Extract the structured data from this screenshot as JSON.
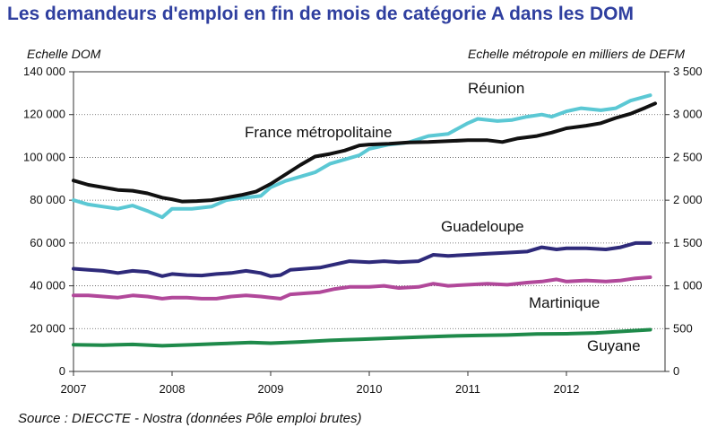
{
  "title": "Les demandeurs d'emploi en fin de mois de catégorie A dans les DOM",
  "source": "Source : DIECCTE - Nostra (données Pôle emploi brutes)",
  "chart_data": {
    "type": "line",
    "title": "Les demandeurs d'emploi en fin de mois de catégorie A dans les DOM",
    "ylabel_left": "Echelle DOM",
    "ylabel_right": "Echelle métropole en milliers de DEFM",
    "ylim_left": [
      0,
      140000
    ],
    "ylim_right": [
      0,
      3500
    ],
    "xlim": [
      2007,
      2013
    ],
    "yticks_left": [
      "0",
      "20 000",
      "40 000",
      "60 000",
      "80 000",
      "100 000",
      "120 000",
      "140 000"
    ],
    "yticks_right": [
      "0",
      "500",
      "1 000",
      "1 500",
      "2 000",
      "2 500",
      "3 000",
      "3 500"
    ],
    "xticks": [
      "2007",
      "2008",
      "2009",
      "2010",
      "2011",
      "2012"
    ],
    "grid": "horizontal",
    "series": [
      {
        "name": "Réunion",
        "axis": "left",
        "color": "#5bc8d4",
        "points": [
          [
            2007.0,
            80000
          ],
          [
            2007.15,
            78000
          ],
          [
            2007.3,
            77000
          ],
          [
            2007.45,
            76000
          ],
          [
            2007.6,
            77500
          ],
          [
            2007.75,
            75000
          ],
          [
            2007.9,
            72000
          ],
          [
            2008.0,
            76000
          ],
          [
            2008.2,
            76000
          ],
          [
            2008.4,
            77000
          ],
          [
            2008.55,
            80000
          ],
          [
            2008.7,
            81000
          ],
          [
            2008.9,
            82000
          ],
          [
            2009.0,
            86000
          ],
          [
            2009.15,
            89000
          ],
          [
            2009.3,
            91000
          ],
          [
            2009.45,
            93000
          ],
          [
            2009.6,
            97000
          ],
          [
            2009.75,
            99000
          ],
          [
            2009.9,
            101000
          ],
          [
            2010.0,
            104000
          ],
          [
            2010.2,
            106000
          ],
          [
            2010.4,
            107000
          ],
          [
            2010.6,
            110000
          ],
          [
            2010.8,
            111000
          ],
          [
            2011.0,
            116000
          ],
          [
            2011.1,
            118000
          ],
          [
            2011.3,
            117000
          ],
          [
            2011.45,
            117500
          ],
          [
            2011.6,
            119000
          ],
          [
            2011.75,
            120000
          ],
          [
            2011.85,
            119000
          ],
          [
            2012.0,
            121500
          ],
          [
            2012.15,
            123000
          ],
          [
            2012.35,
            122000
          ],
          [
            2012.5,
            123000
          ],
          [
            2012.65,
            126500
          ],
          [
            2012.85,
            129000
          ]
        ]
      },
      {
        "name": "France métropolitaine",
        "axis": "right",
        "color": "#111111",
        "points": [
          [
            2007.0,
            2230
          ],
          [
            2007.15,
            2180
          ],
          [
            2007.3,
            2150
          ],
          [
            2007.45,
            2120
          ],
          [
            2007.6,
            2110
          ],
          [
            2007.75,
            2080
          ],
          [
            2007.9,
            2030
          ],
          [
            2008.0,
            2010
          ],
          [
            2008.1,
            1985
          ],
          [
            2008.25,
            1990
          ],
          [
            2008.4,
            2000
          ],
          [
            2008.55,
            2030
          ],
          [
            2008.7,
            2060
          ],
          [
            2008.85,
            2100
          ],
          [
            2009.0,
            2190
          ],
          [
            2009.15,
            2300
          ],
          [
            2009.3,
            2410
          ],
          [
            2009.45,
            2510
          ],
          [
            2009.6,
            2540
          ],
          [
            2009.75,
            2580
          ],
          [
            2009.9,
            2640
          ],
          [
            2010.0,
            2650
          ],
          [
            2010.2,
            2660
          ],
          [
            2010.4,
            2675
          ],
          [
            2010.6,
            2680
          ],
          [
            2010.8,
            2690
          ],
          [
            2011.0,
            2700
          ],
          [
            2011.2,
            2700
          ],
          [
            2011.35,
            2680
          ],
          [
            2011.5,
            2720
          ],
          [
            2011.7,
            2750
          ],
          [
            2011.85,
            2790
          ],
          [
            2012.0,
            2840
          ],
          [
            2012.2,
            2870
          ],
          [
            2012.35,
            2900
          ],
          [
            2012.5,
            2960
          ],
          [
            2012.65,
            3010
          ],
          [
            2012.8,
            3080
          ],
          [
            2012.9,
            3130
          ]
        ]
      },
      {
        "name": "Guadeloupe",
        "axis": "left",
        "color": "#2e2a7a",
        "points": [
          [
            2007.0,
            48000
          ],
          [
            2007.15,
            47500
          ],
          [
            2007.3,
            47000
          ],
          [
            2007.45,
            46000
          ],
          [
            2007.6,
            47000
          ],
          [
            2007.75,
            46500
          ],
          [
            2007.9,
            44500
          ],
          [
            2008.0,
            45500
          ],
          [
            2008.15,
            45000
          ],
          [
            2008.3,
            44800
          ],
          [
            2008.45,
            45500
          ],
          [
            2008.6,
            46000
          ],
          [
            2008.75,
            47000
          ],
          [
            2008.9,
            46000
          ],
          [
            2009.0,
            44500
          ],
          [
            2009.1,
            45000
          ],
          [
            2009.2,
            47500
          ],
          [
            2009.35,
            48000
          ],
          [
            2009.5,
            48500
          ],
          [
            2009.65,
            50000
          ],
          [
            2009.8,
            51500
          ],
          [
            2010.0,
            51000
          ],
          [
            2010.15,
            51500
          ],
          [
            2010.3,
            51000
          ],
          [
            2010.5,
            51500
          ],
          [
            2010.65,
            54500
          ],
          [
            2010.8,
            54000
          ],
          [
            2011.0,
            54500
          ],
          [
            2011.2,
            55000
          ],
          [
            2011.4,
            55500
          ],
          [
            2011.6,
            56000
          ],
          [
            2011.75,
            58000
          ],
          [
            2011.9,
            57000
          ],
          [
            2012.0,
            57500
          ],
          [
            2012.2,
            57500
          ],
          [
            2012.4,
            57000
          ],
          [
            2012.55,
            58000
          ],
          [
            2012.7,
            60000
          ],
          [
            2012.85,
            60000
          ]
        ]
      },
      {
        "name": "Martinique",
        "axis": "left",
        "color": "#b1489a",
        "points": [
          [
            2007.0,
            35500
          ],
          [
            2007.15,
            35500
          ],
          [
            2007.3,
            35000
          ],
          [
            2007.45,
            34500
          ],
          [
            2007.6,
            35500
          ],
          [
            2007.75,
            35000
          ],
          [
            2007.9,
            34000
          ],
          [
            2008.0,
            34500
          ],
          [
            2008.15,
            34500
          ],
          [
            2008.3,
            34000
          ],
          [
            2008.45,
            34000
          ],
          [
            2008.6,
            35000
          ],
          [
            2008.75,
            35500
          ],
          [
            2008.9,
            35000
          ],
          [
            2009.0,
            34500
          ],
          [
            2009.1,
            34000
          ],
          [
            2009.2,
            36000
          ],
          [
            2009.35,
            36500
          ],
          [
            2009.5,
            37000
          ],
          [
            2009.65,
            38500
          ],
          [
            2009.8,
            39500
          ],
          [
            2010.0,
            39500
          ],
          [
            2010.15,
            40000
          ],
          [
            2010.3,
            39000
          ],
          [
            2010.5,
            39500
          ],
          [
            2010.65,
            41000
          ],
          [
            2010.8,
            40000
          ],
          [
            2011.0,
            40500
          ],
          [
            2011.2,
            41000
          ],
          [
            2011.4,
            40500
          ],
          [
            2011.6,
            41500
          ],
          [
            2011.75,
            42000
          ],
          [
            2011.9,
            43000
          ],
          [
            2012.0,
            42000
          ],
          [
            2012.2,
            42500
          ],
          [
            2012.4,
            42000
          ],
          [
            2012.55,
            42500
          ],
          [
            2012.7,
            43500
          ],
          [
            2012.85,
            44000
          ]
        ]
      },
      {
        "name": "Guyane",
        "axis": "left",
        "color": "#1e8a4a",
        "points": [
          [
            2007.0,
            12500
          ],
          [
            2007.3,
            12300
          ],
          [
            2007.6,
            12600
          ],
          [
            2007.9,
            12000
          ],
          [
            2008.2,
            12500
          ],
          [
            2008.5,
            13000
          ],
          [
            2008.8,
            13500
          ],
          [
            2009.0,
            13200
          ],
          [
            2009.3,
            13800
          ],
          [
            2009.6,
            14500
          ],
          [
            2009.9,
            15000
          ],
          [
            2010.2,
            15500
          ],
          [
            2010.5,
            16000
          ],
          [
            2010.8,
            16500
          ],
          [
            2011.1,
            16800
          ],
          [
            2011.4,
            17000
          ],
          [
            2011.7,
            17500
          ],
          [
            2012.0,
            17600
          ],
          [
            2012.3,
            18000
          ],
          [
            2012.6,
            18800
          ],
          [
            2012.85,
            19500
          ]
        ]
      }
    ],
    "labels": [
      "Réunion",
      "France métropolitaine",
      "Guadeloupe",
      "Martinique",
      "Guyane"
    ]
  }
}
